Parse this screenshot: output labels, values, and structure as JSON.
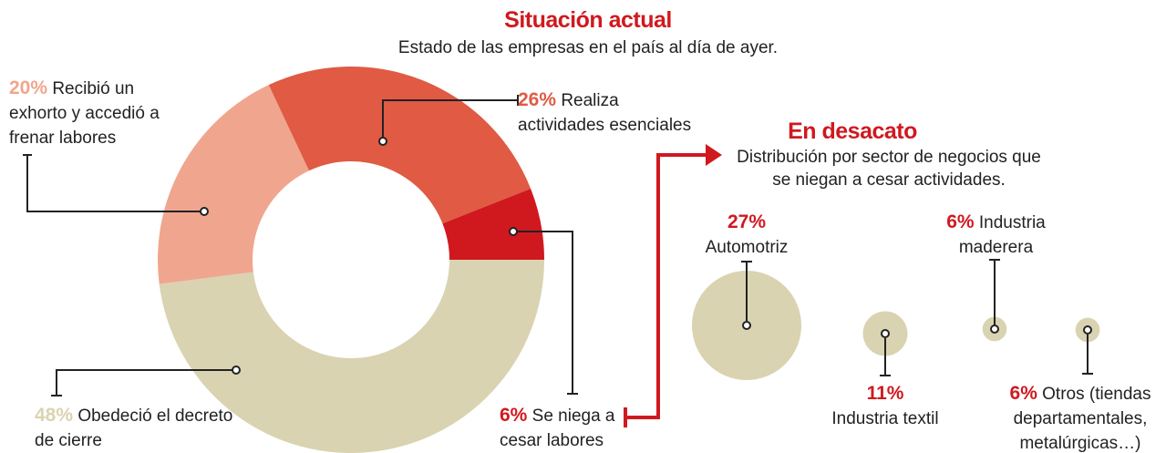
{
  "chart_data": [
    {
      "type": "donut",
      "title": "Situación actual",
      "subtitle": "Estado de las empresas en el país al día de ayer.",
      "categories": [
        "Obedeció el decreto de cierre",
        "Recibió un exhorto y accedió a frenar labores",
        "Realiza actividades esenciales",
        "Se niega a cesar labores"
      ],
      "values": [
        48,
        20,
        26,
        6
      ],
      "value_labels": [
        "48%",
        "20%",
        "26%",
        "6%"
      ],
      "colors": [
        "#d9d3b1",
        "#f0a68e",
        "#e05a44",
        "#d0191f"
      ]
    },
    {
      "type": "bubble",
      "title": "En desacato",
      "subtitle": "Distribución por sector de negocios que se niegan a cesar actividades.",
      "categories": [
        "Automotriz",
        "Industria textil",
        "Industria maderera",
        "Otros (tiendas departamentales, metalúrgicas…)"
      ],
      "values": [
        27,
        11,
        6,
        6
      ],
      "value_labels": [
        "27%",
        "11%",
        "6%",
        "6%"
      ],
      "color": "#d9d3b1",
      "value_label_color": "#d0191f"
    }
  ]
}
